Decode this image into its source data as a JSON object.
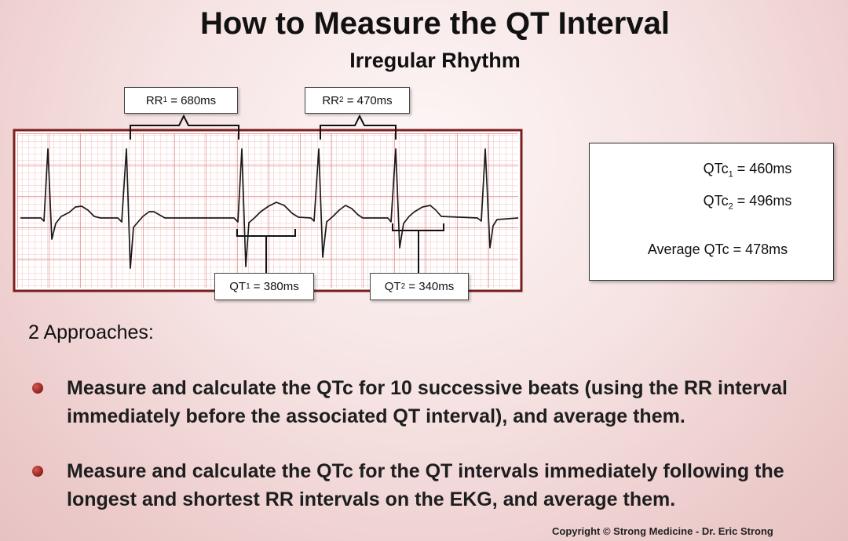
{
  "title": "How to Measure the QT Interval",
  "subtitle": "Irregular Rhythm",
  "rr_labels": [
    {
      "prefix": "RR",
      "sub": "1",
      "value": " = 680ms"
    },
    {
      "prefix": "RR",
      "sub": "2",
      "value": " = 470ms"
    }
  ],
  "qt_labels": [
    {
      "prefix": "QT",
      "sub": "1",
      "value": " = 380ms"
    },
    {
      "prefix": "QT",
      "sub": "2",
      "value": " = 340ms"
    }
  ],
  "qtc_panel": {
    "qtc1": {
      "prefix": "QTc",
      "sub": "1",
      "value": " = 460ms"
    },
    "qtc2": {
      "prefix": "QTc",
      "sub": "2",
      "value": " = 496ms"
    },
    "average": "Average QTc = 478ms"
  },
  "approaches": {
    "heading": "2 Approaches:",
    "items": [
      "Measure and calculate the QTc for 10 successive beats (using the RR interval immediately before the associated QT interval), and average them.",
      "Measure and calculate the QTc for the QT intervals immediately following the longest and shortest RR intervals on the EKG, and average them."
    ]
  },
  "copyright": "Copyright © Strong Medicine - Dr. Eric Strong",
  "colors": {
    "grid_minor": "#f1b4b4",
    "grid_major": "#e48787",
    "ekg_border": "#7a1e1e",
    "trace": "#1a1a1a",
    "bullet": "#8f1f18"
  }
}
